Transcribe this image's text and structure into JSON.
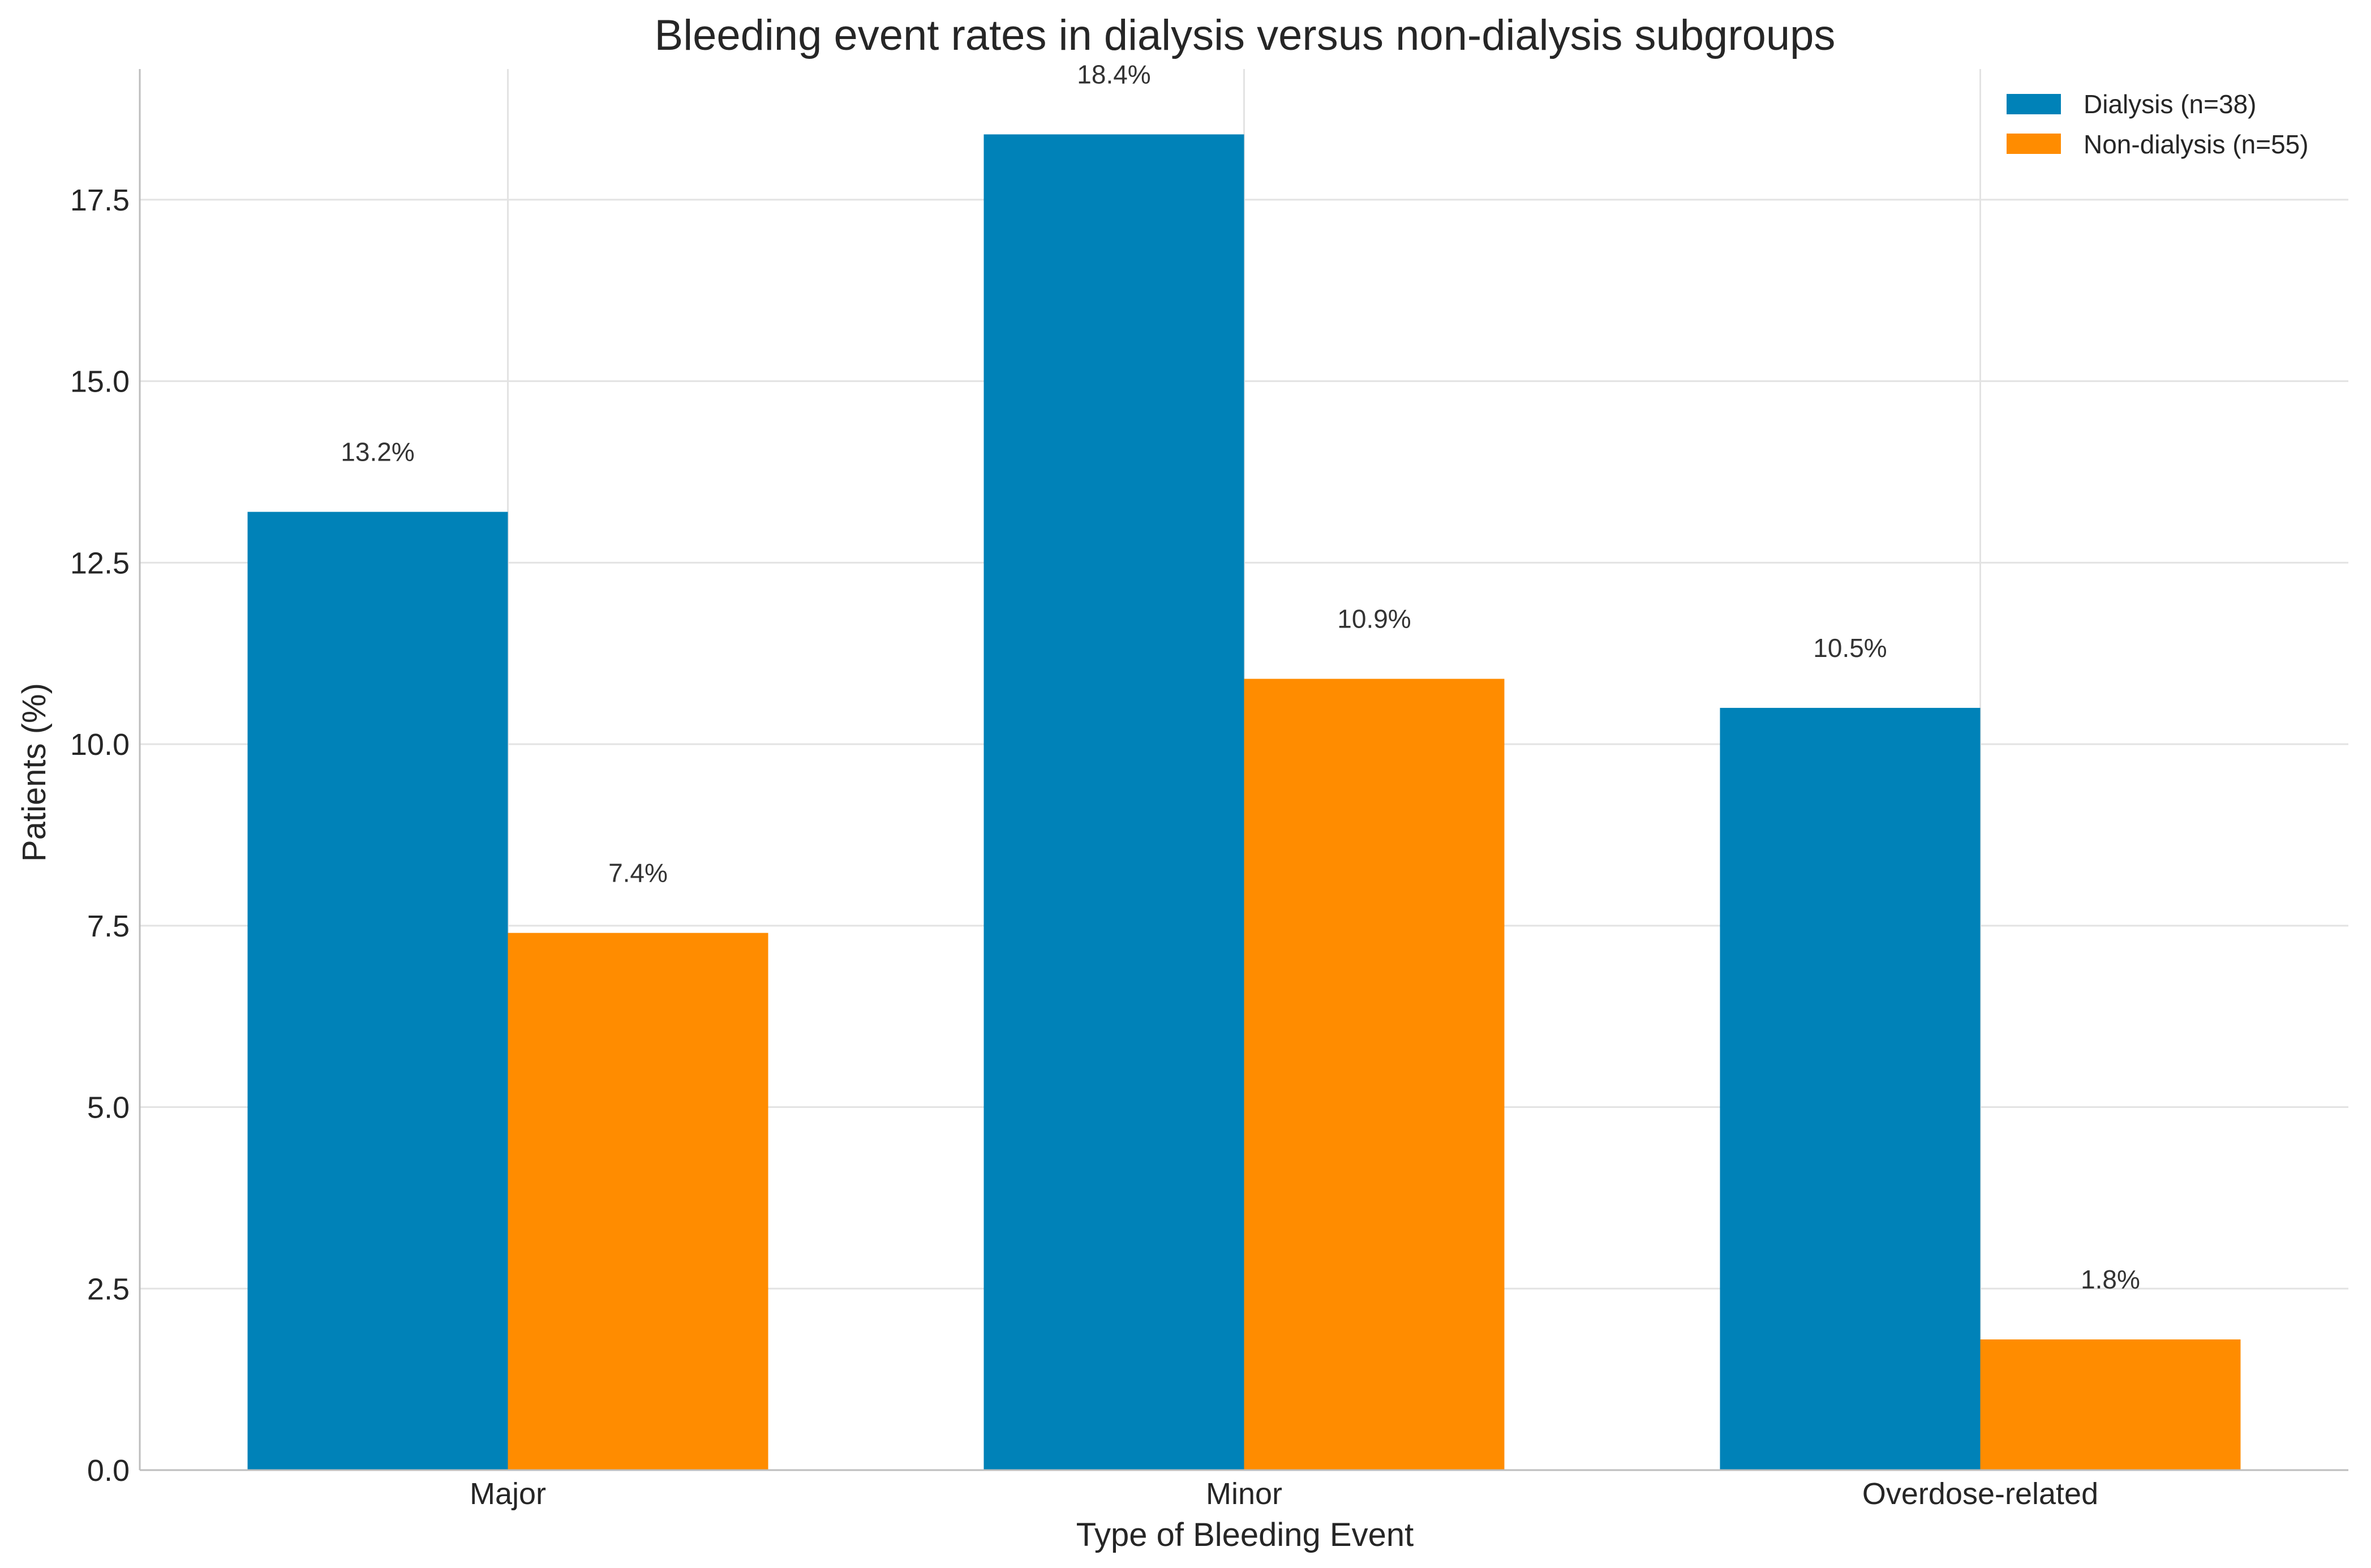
{
  "chart_data": {
    "type": "bar",
    "title": "Bleeding event rates in dialysis versus non-dialysis subgroups",
    "xlabel": "Type of Bleeding Event",
    "ylabel": "Patients (%)",
    "categories": [
      "Major",
      "Minor",
      "Overdose-related"
    ],
    "ylim": [
      0,
      19.3
    ],
    "yticks": [
      0.0,
      2.5,
      5.0,
      7.5,
      10.0,
      12.5,
      15.0,
      17.5
    ],
    "ytick_labels": [
      "0.0",
      "2.5",
      "5.0",
      "7.5",
      "10.0",
      "12.5",
      "15.0",
      "17.5"
    ],
    "grid": true,
    "legend_position": "top-right",
    "series": [
      {
        "name": "Dialysis (n=38)",
        "color": "#0082b8",
        "values": [
          13.2,
          18.4,
          10.5
        ],
        "labels": [
          "13.2%",
          "18.4%",
          "10.5%"
        ]
      },
      {
        "name": "Non-dialysis (n=55)",
        "color": "#ff8c00",
        "values": [
          7.4,
          10.9,
          1.8
        ],
        "labels": [
          "7.4%",
          "10.9%",
          "1.8%"
        ]
      }
    ]
  }
}
